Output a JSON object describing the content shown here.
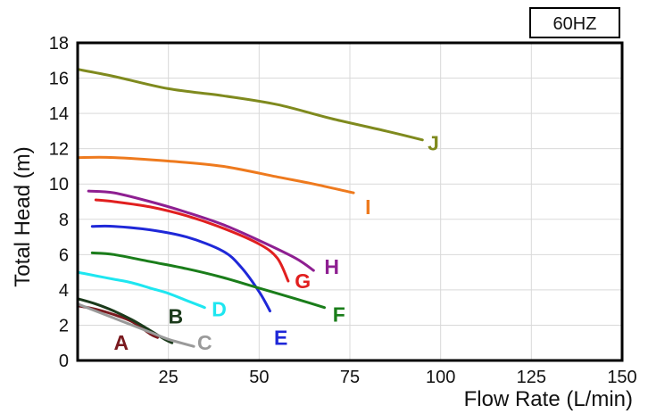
{
  "badge": "60HZ",
  "chart_data": {
    "type": "line",
    "title": "",
    "xlabel": "Flow Rate (L/min)",
    "ylabel": "Total Head (m)",
    "xlim": [
      0,
      150
    ],
    "ylim": [
      0,
      18
    ],
    "x_ticks": [
      "25",
      "50",
      "75",
      "100",
      "125",
      "150"
    ],
    "y_ticks": [
      "0",
      "2",
      "4",
      "6",
      "8",
      "10",
      "12",
      "14",
      "16",
      "18"
    ],
    "grid": true,
    "colors": {
      "background": "#ffffff",
      "grid": "#d9d9d9",
      "frame": "#000000"
    },
    "series": [
      {
        "name": "A",
        "color": "#7a1a1f",
        "x": [
          0,
          5,
          10,
          15,
          20,
          22
        ],
        "y": [
          3.1,
          2.9,
          2.6,
          2.2,
          1.5,
          1.3
        ]
      },
      {
        "name": "B",
        "color": "#1b3a1b",
        "x": [
          0,
          5,
          10,
          15,
          20,
          24,
          26
        ],
        "y": [
          3.5,
          3.2,
          2.8,
          2.3,
          1.7,
          1.2,
          1.0
        ]
      },
      {
        "name": "C",
        "color": "#9a9a9a",
        "x": [
          0,
          5,
          10,
          15,
          20,
          25,
          32
        ],
        "y": [
          3.2,
          2.8,
          2.4,
          2.0,
          1.6,
          1.2,
          0.8
        ]
      },
      {
        "name": "D",
        "color": "#1ee6f0",
        "x": [
          0,
          5,
          10,
          15,
          20,
          25,
          30,
          35
        ],
        "y": [
          5.0,
          4.8,
          4.6,
          4.4,
          4.1,
          3.8,
          3.4,
          3.0
        ]
      },
      {
        "name": "E",
        "color": "#1f28d8",
        "x": [
          4,
          10,
          20,
          30,
          40,
          45,
          50,
          53
        ],
        "y": [
          7.6,
          7.6,
          7.4,
          7.0,
          6.2,
          5.3,
          3.9,
          2.8
        ]
      },
      {
        "name": "F",
        "color": "#1a7d1a",
        "x": [
          4,
          10,
          20,
          30,
          40,
          50,
          60,
          68
        ],
        "y": [
          6.1,
          6.0,
          5.6,
          5.2,
          4.7,
          4.1,
          3.5,
          3.0
        ]
      },
      {
        "name": "G",
        "color": "#e11f1f",
        "x": [
          5,
          10,
          20,
          30,
          40,
          50,
          55,
          58
        ],
        "y": [
          9.1,
          9.0,
          8.7,
          8.2,
          7.5,
          6.6,
          5.8,
          4.5
        ]
      },
      {
        "name": "H",
        "color": "#8e1f91",
        "x": [
          3,
          10,
          20,
          30,
          40,
          50,
          60,
          65
        ],
        "y": [
          9.6,
          9.5,
          9.0,
          8.4,
          7.7,
          6.8,
          5.8,
          5.1
        ]
      },
      {
        "name": "I",
        "color": "#ee7a1e",
        "x": [
          0,
          10,
          25,
          40,
          55,
          65,
          76
        ],
        "y": [
          11.5,
          11.5,
          11.3,
          11.0,
          10.4,
          10.0,
          9.5
        ]
      },
      {
        "name": "J",
        "color": "#7f8a1e",
        "x": [
          0,
          10,
          25,
          40,
          55,
          70,
          85,
          95
        ],
        "y": [
          16.5,
          16.1,
          15.4,
          15.0,
          14.5,
          13.7,
          13.0,
          12.5
        ]
      }
    ],
    "annotations": [
      {
        "text": "A",
        "x": 12,
        "y": 1.0
      },
      {
        "text": "B",
        "x": 27,
        "y": 2.5
      },
      {
        "text": "C",
        "x": 35,
        "y": 1.0
      },
      {
        "text": "D",
        "x": 39,
        "y": 2.9
      },
      {
        "text": "E",
        "x": 56,
        "y": 1.3
      },
      {
        "text": "F",
        "x": 72,
        "y": 2.6
      },
      {
        "text": "G",
        "x": 62,
        "y": 4.5
      },
      {
        "text": "H",
        "x": 70,
        "y": 5.3
      },
      {
        "text": "I",
        "x": 80,
        "y": 8.7
      },
      {
        "text": "J",
        "x": 98,
        "y": 12.3
      }
    ]
  }
}
